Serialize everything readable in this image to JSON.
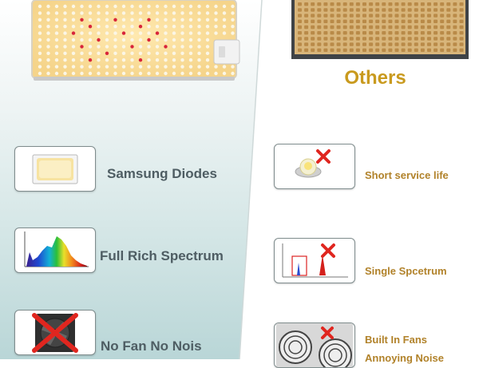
{
  "header": {
    "others_title": "Others"
  },
  "features": [
    {
      "label": "Samsung Diodes",
      "icon": "samsung-diode-icon"
    },
    {
      "label": "Full Rich Spectrum",
      "icon": "full-spectrum-icon"
    },
    {
      "label": "No Fan No Nois",
      "icon": "no-fan-icon"
    }
  ],
  "others": [
    {
      "label": "Short service life",
      "icon": "crossed-led-icon"
    },
    {
      "label": "Single Spcetrum",
      "icon": "crossed-single-spectrum-icon"
    },
    {
      "label": "Built In Fans",
      "label2": "Annoying Noise",
      "icon": "crossed-fans-icon"
    }
  ],
  "colors": {
    "accent_gold": "#c99a1e",
    "left_label": "#4e5d63",
    "right_label": "#b1822a",
    "cross_red": "#e0261f"
  }
}
